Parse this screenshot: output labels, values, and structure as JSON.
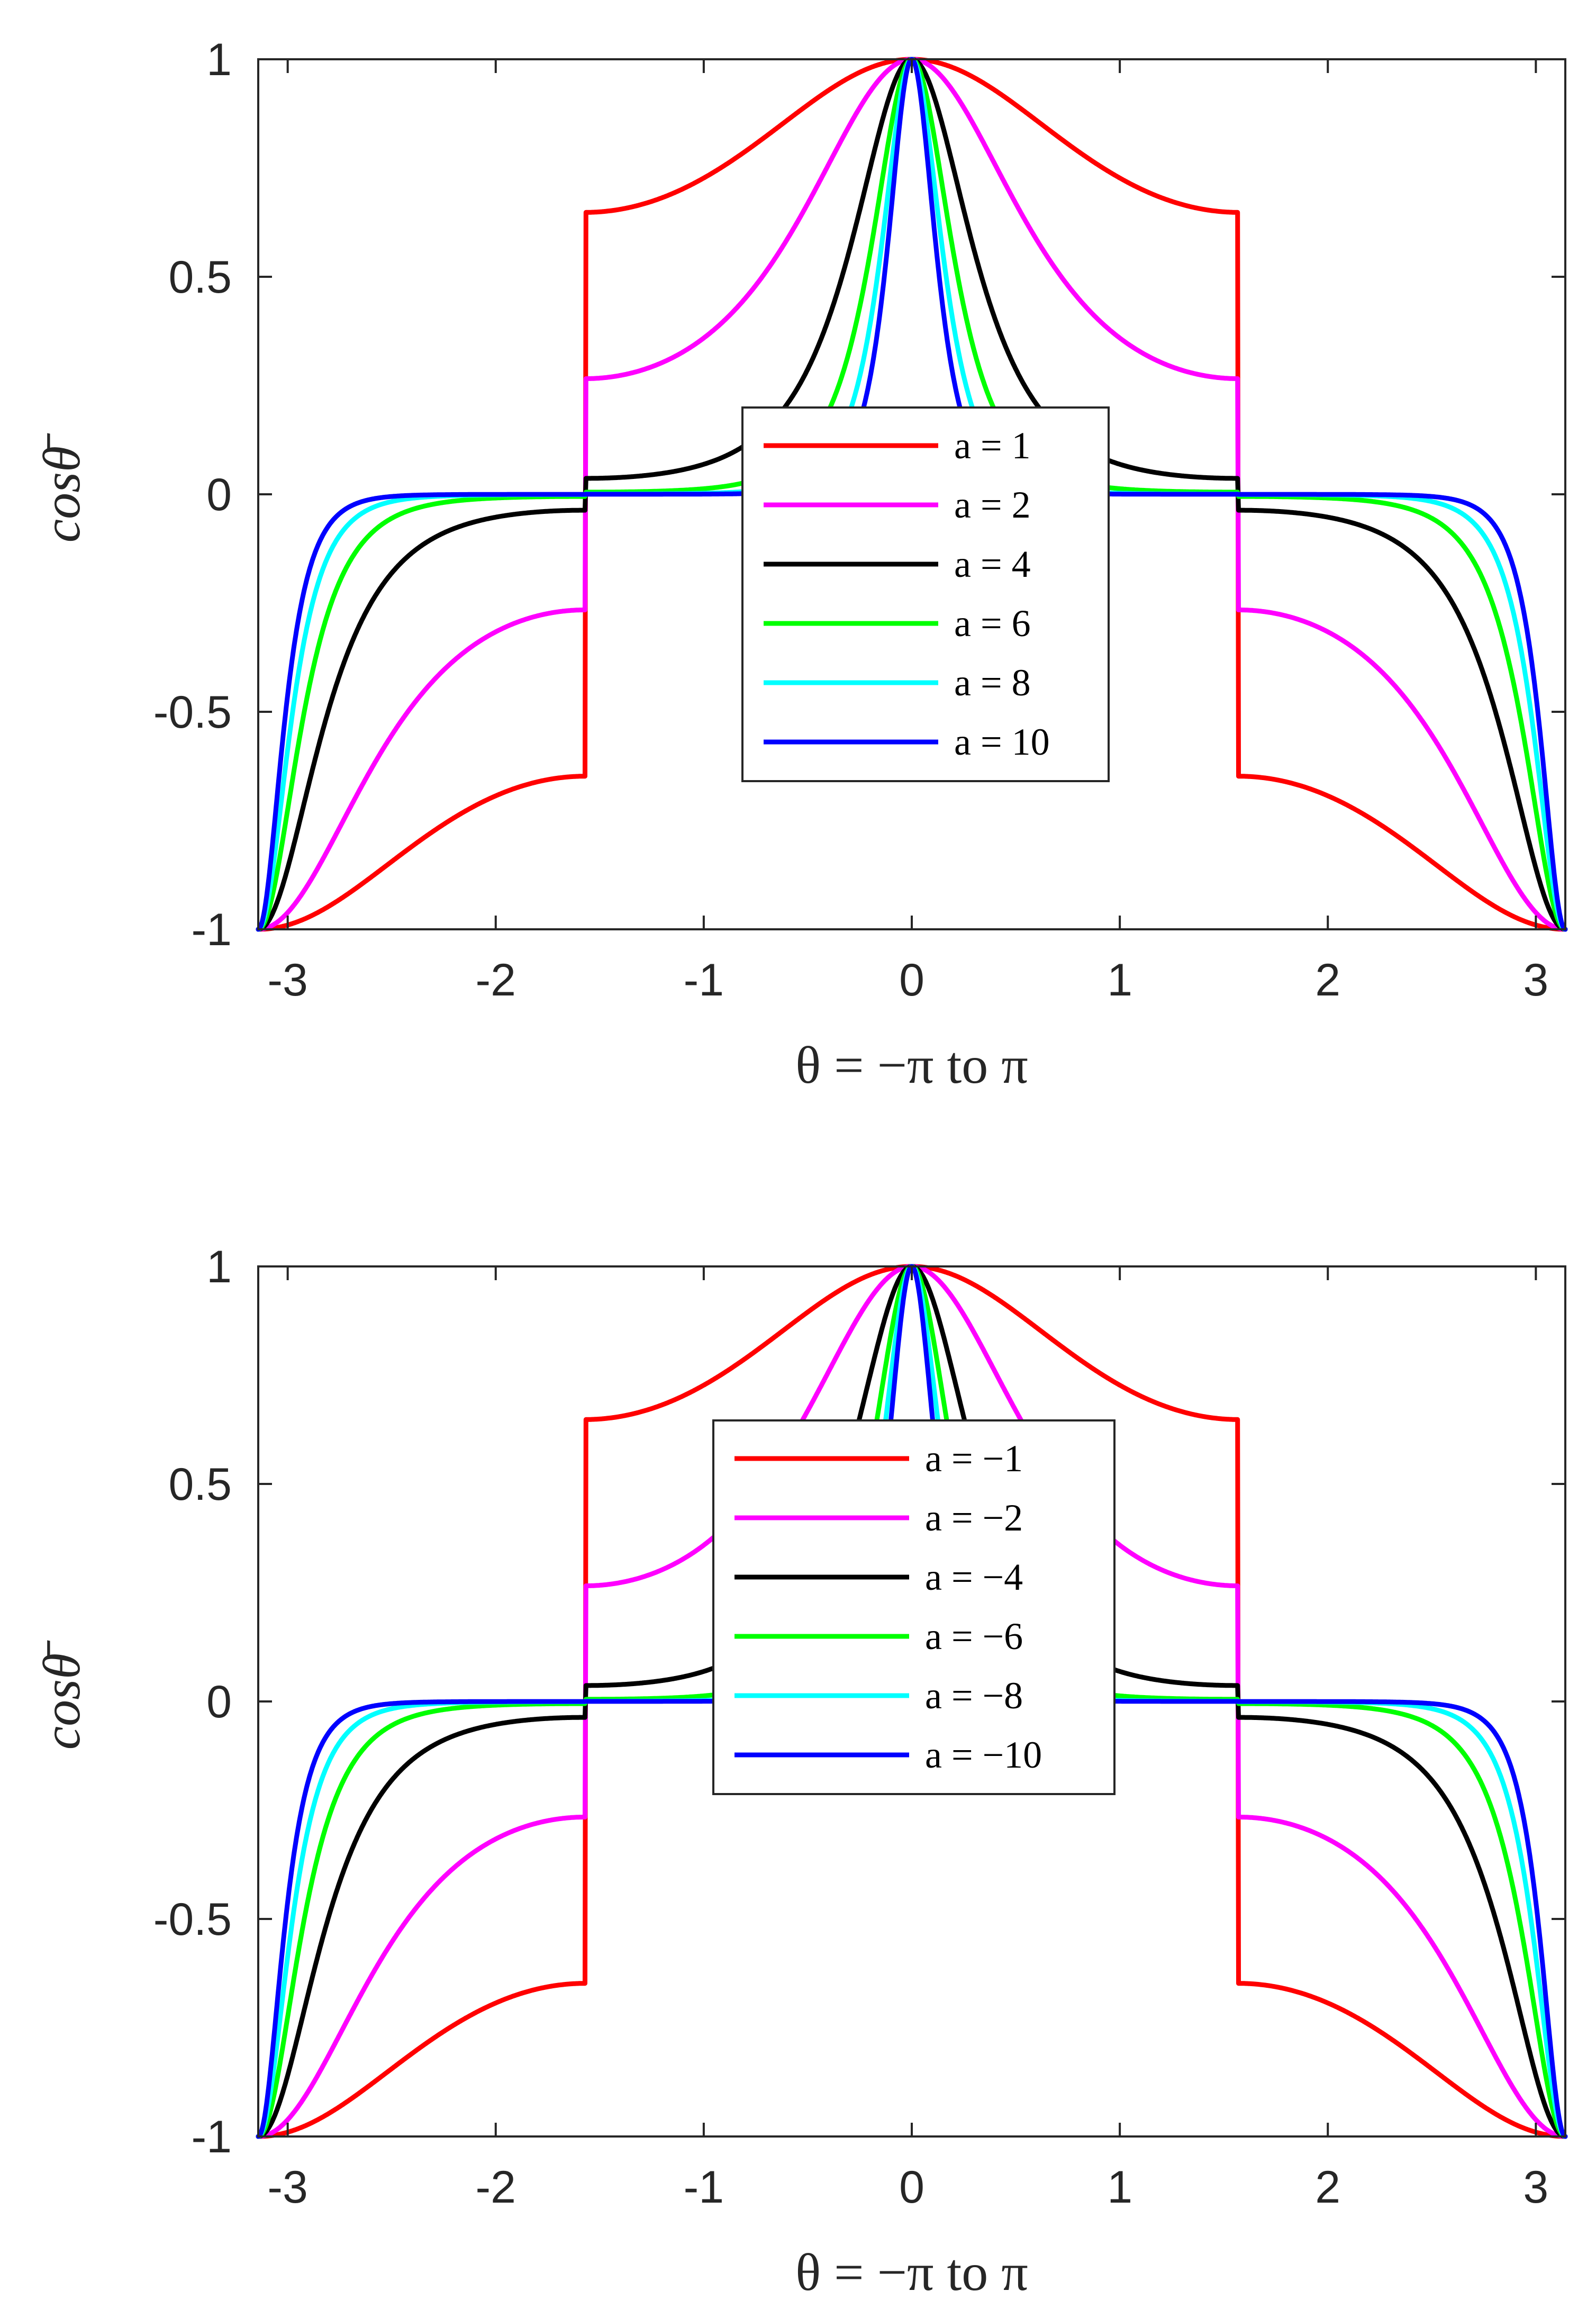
{
  "chart_data": [
    {
      "type": "line",
      "title": "",
      "xlabel": "θ = −π to π",
      "ylabel": "cosθ̄",
      "xlim": [
        -3.1416,
        3.1416
      ],
      "ylim": [
        -1,
        1
      ],
      "xticks": [
        -3,
        -2,
        -1,
        0,
        1,
        2,
        3
      ],
      "xtick_labels": [
        "-3",
        "-2",
        "-1",
        "0",
        "1",
        "2",
        "3"
      ],
      "yticks": [
        -1,
        -0.5,
        0,
        0.5,
        1
      ],
      "ytick_labels": [
        "-1",
        "-0.5",
        "0",
        "0.5",
        "1"
      ],
      "legend_position": "center",
      "function": "cos(θ̄) where sin(θ̄) = tanh(a·sin θ), θ̄ in range of θ",
      "series": [
        {
          "name": "a = 1",
          "a": 1,
          "color": "#ff0000"
        },
        {
          "name": "a = 2",
          "a": 2,
          "color": "#ff00ff"
        },
        {
          "name": "a = 4",
          "a": 4,
          "color": "#000000"
        },
        {
          "name": "a = 6",
          "a": 6,
          "color": "#00ff00"
        },
        {
          "name": "a = 8",
          "a": 8,
          "color": "#00ffff"
        },
        {
          "name": "a = 10",
          "a": 10,
          "color": "#0000ff"
        }
      ]
    },
    {
      "type": "line",
      "title": "",
      "xlabel": "θ = −π to π",
      "ylabel": "cosθ̄",
      "xlim": [
        -3.1416,
        3.1416
      ],
      "ylim": [
        -1,
        1
      ],
      "xticks": [
        -3,
        -2,
        -1,
        0,
        1,
        2,
        3
      ],
      "xtick_labels": [
        "-3",
        "-2",
        "-1",
        "0",
        "1",
        "2",
        "3"
      ],
      "yticks": [
        -1,
        -0.5,
        0,
        0.5,
        1
      ],
      "ytick_labels": [
        "-1",
        "-0.5",
        "0",
        "0.5",
        "1"
      ],
      "legend_position": "center",
      "series": [
        {
          "name": "a = −1",
          "a": -1,
          "color": "#ff0000"
        },
        {
          "name": "a = −2",
          "a": -2,
          "color": "#ff00ff"
        },
        {
          "name": "a = −4",
          "a": -4,
          "color": "#000000"
        },
        {
          "name": "a = −6",
          "a": -6,
          "color": "#00ff00"
        },
        {
          "name": "a = −8",
          "a": -8,
          "color": "#00ffff"
        },
        {
          "name": "a = −10",
          "a": -10,
          "color": "#0000ff"
        }
      ]
    }
  ]
}
